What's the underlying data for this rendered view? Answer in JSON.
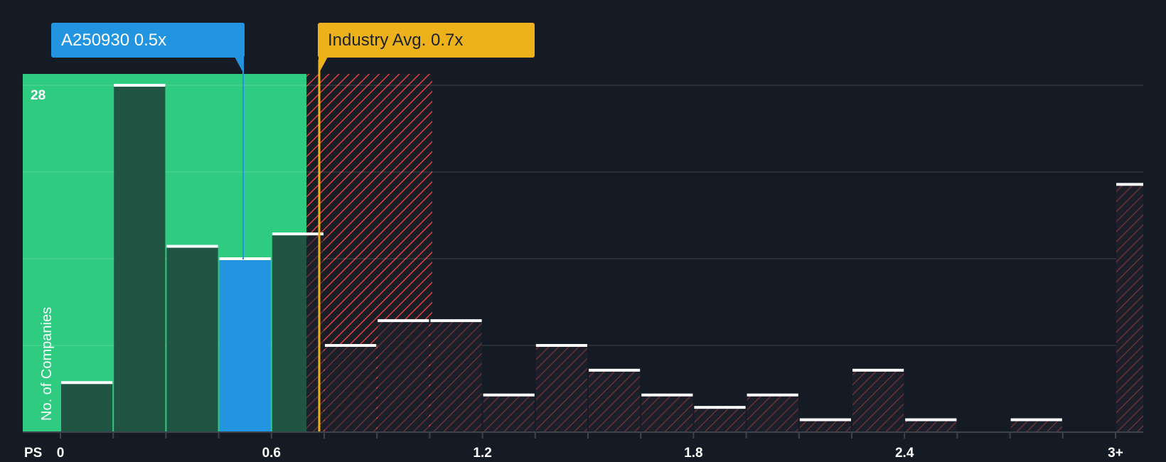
{
  "company_label": {
    "text": "A250930 0.5x",
    "value": 0.5,
    "color": "#2394df"
  },
  "industry_label": {
    "text": "Industry Avg. 0.7x",
    "value": 0.7,
    "color": "#edb21b"
  },
  "y_axis": {
    "label": "No. of Companies",
    "max_tick": "28"
  },
  "x_axis": {
    "name": "PS",
    "ticks": [
      {
        "label": "0",
        "pos": 0
      },
      {
        "label": "0.6",
        "pos": 4
      },
      {
        "label": "1.2",
        "pos": 8
      },
      {
        "label": "1.8",
        "pos": 12
      },
      {
        "label": "2.4",
        "pos": 16
      },
      {
        "label": "3+",
        "pos": 20
      }
    ]
  },
  "colors": {
    "background": "#151b24",
    "undervalued_zone": "#2ecb80",
    "overvalued_hatch": "#e0403f",
    "bar_dark": "#1f4a3e",
    "bar_highlight": "#2394df",
    "bar_top": "#ffffff"
  },
  "chart_data": {
    "type": "bar",
    "title": "",
    "xlabel": "PS",
    "ylabel": "No. of Companies",
    "categories": [
      "0-0.15",
      "0.15-0.3",
      "0.3-0.45",
      "0.45-0.6",
      "0.6-0.75",
      "0.75-0.9",
      "0.9-1.05",
      "1.05-1.2",
      "1.2-1.35",
      "1.35-1.5",
      "1.5-1.65",
      "1.65-1.8",
      "1.8-1.95",
      "1.95-2.1",
      "2.1-2.25",
      "2.25-2.4",
      "2.4-2.55",
      "2.55-2.7",
      "2.7-2.85",
      "2.85-3.0",
      "3+"
    ],
    "values": [
      4,
      28,
      15,
      14,
      16,
      7,
      9,
      9,
      3,
      7,
      5,
      3,
      2,
      3,
      1,
      5,
      1,
      0,
      1,
      0,
      20
    ],
    "highlight_index": 3,
    "ylim": [
      0,
      29
    ],
    "y_gridlines": [
      7,
      14,
      21,
      28
    ],
    "x_tick_labels": [
      "0",
      "0.6",
      "1.2",
      "1.8",
      "2.4",
      "3+"
    ],
    "annotations": [
      "A250930 0.5x",
      "Industry Avg. 0.7x"
    ],
    "legend": "none"
  }
}
